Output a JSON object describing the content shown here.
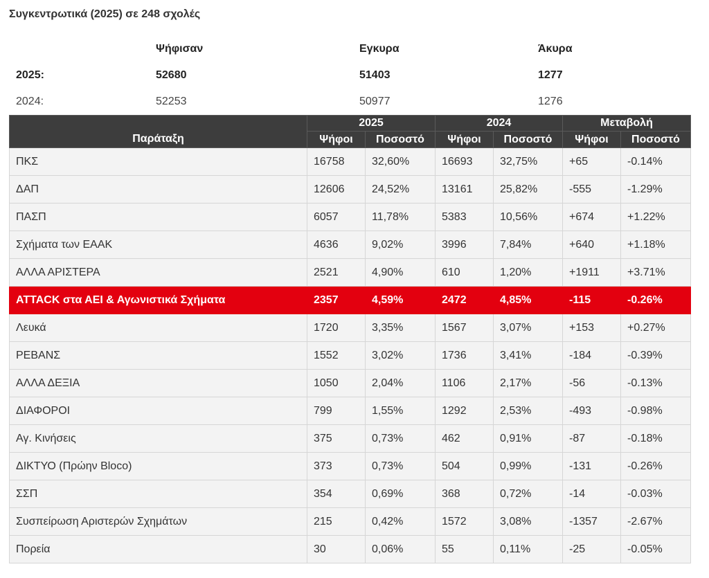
{
  "title": "Συγκεντρωτικά (2025) σε 248 σχολές",
  "summary": {
    "headers": [
      "",
      "Ψήφισαν",
      "Εγκυρα",
      "Άκυρα"
    ],
    "rows": [
      {
        "label": "2025:",
        "voted": "52680",
        "valid": "51403",
        "invalid": "1277"
      },
      {
        "label": "2024:",
        "voted": "52253",
        "valid": "50977",
        "invalid": "1276"
      }
    ]
  },
  "results": {
    "header": {
      "party": "Παράταξη",
      "year_2025": "2025",
      "year_2024": "2024",
      "change": "Μεταβολή",
      "votes": "Ψήφοι",
      "percent": "Ποσοστό"
    },
    "highlight_color": "#e3000f",
    "rows": [
      {
        "party": "ΠΚΣ",
        "v25": "16758",
        "p25": "32,60%",
        "v24": "16693",
        "p24": "32,75%",
        "dv": "+65",
        "dp": "-0.14%"
      },
      {
        "party": "ΔΑΠ",
        "v25": "12606",
        "p25": "24,52%",
        "v24": "13161",
        "p24": "25,82%",
        "dv": "-555",
        "dp": "-1.29%"
      },
      {
        "party": "ΠΑΣΠ",
        "v25": "6057",
        "p25": "11,78%",
        "v24": "5383",
        "p24": "10,56%",
        "dv": "+674",
        "dp": "+1.22%"
      },
      {
        "party": "Σχήματα των ΕΑΑΚ",
        "v25": "4636",
        "p25": "9,02%",
        "v24": "3996",
        "p24": "7,84%",
        "dv": "+640",
        "dp": "+1.18%"
      },
      {
        "party": "ΑΛΛΑ ΑΡΙΣΤΕΡΑ",
        "v25": "2521",
        "p25": "4,90%",
        "v24": "610",
        "p24": "1,20%",
        "dv": "+1911",
        "dp": "+3.71%"
      },
      {
        "party": "ATTACK στα ΑΕΙ & Αγωνιστικά Σχήματα",
        "v25": "2357",
        "p25": "4,59%",
        "v24": "2472",
        "p24": "4,85%",
        "dv": "-115",
        "dp": "-0.26%",
        "highlight": true
      },
      {
        "party": "Λευκά",
        "v25": "1720",
        "p25": "3,35%",
        "v24": "1567",
        "p24": "3,07%",
        "dv": "+153",
        "dp": "+0.27%"
      },
      {
        "party": "ΡΕΒΑΝΣ",
        "v25": "1552",
        "p25": "3,02%",
        "v24": "1736",
        "p24": "3,41%",
        "dv": "-184",
        "dp": "-0.39%"
      },
      {
        "party": "ΑΛΛΑ ΔΕΞΙΑ",
        "v25": "1050",
        "p25": "2,04%",
        "v24": "1106",
        "p24": "2,17%",
        "dv": "-56",
        "dp": "-0.13%"
      },
      {
        "party": "ΔΙΑΦΟΡΟΙ",
        "v25": "799",
        "p25": "1,55%",
        "v24": "1292",
        "p24": "2,53%",
        "dv": "-493",
        "dp": "-0.98%"
      },
      {
        "party": "Αγ. Κινήσεις",
        "v25": "375",
        "p25": "0,73%",
        "v24": "462",
        "p24": "0,91%",
        "dv": "-87",
        "dp": "-0.18%"
      },
      {
        "party": "ΔΙΚΤΥΟ (Πρώην Bloco)",
        "v25": "373",
        "p25": "0,73%",
        "v24": "504",
        "p24": "0,99%",
        "dv": "-131",
        "dp": "-0.26%"
      },
      {
        "party": "ΣΣΠ",
        "v25": "354",
        "p25": "0,69%",
        "v24": "368",
        "p24": "0,72%",
        "dv": "-14",
        "dp": "-0.03%"
      },
      {
        "party": "Συσπείρωση Αριστερών Σχημάτων",
        "v25": "215",
        "p25": "0,42%",
        "v24": "1572",
        "p24": "3,08%",
        "dv": "-1357",
        "dp": "-2.67%"
      },
      {
        "party": "Πορεία",
        "v25": "30",
        "p25": "0,06%",
        "v24": "55",
        "p24": "0,11%",
        "dv": "-25",
        "dp": "-0.05%"
      }
    ]
  }
}
